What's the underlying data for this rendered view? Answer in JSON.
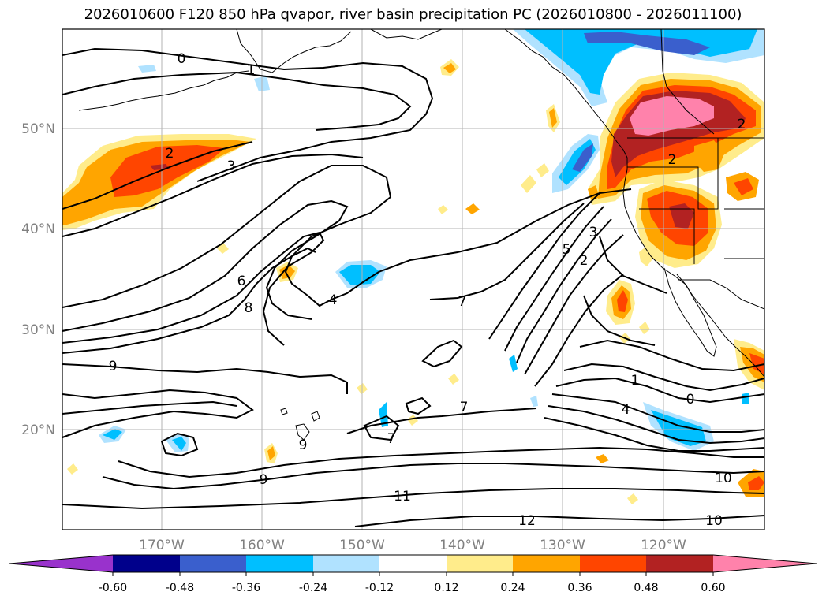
{
  "title": "2026010600 F120 850 hPa qvapor, river basin precipitation PC (2026010800 - 2026011100)",
  "lat_labels": [
    "50°N",
    "40°N",
    "30°N",
    "20°N"
  ],
  "lon_labels": [
    "170°W",
    "160°W",
    "150°W",
    "140°W",
    "130°W",
    "120°W"
  ],
  "contour_labels": [
    "0",
    "1",
    "2",
    "3",
    "4",
    "5",
    "6",
    "7",
    "8",
    "9",
    "10",
    "11",
    "12"
  ],
  "colorbar": {
    "ticks": [
      "-0.60",
      "-0.48",
      "-0.36",
      "-0.24",
      "-0.12",
      "0.12",
      "0.24",
      "0.36",
      "0.48",
      "0.60"
    ],
    "colors": [
      "#9932cc",
      "#00008b",
      "#3a5fcd",
      "#00bfff",
      "#b0e2ff",
      "#ffffff",
      "#ffec8b",
      "#ffa500",
      "#ff4500",
      "#b22222",
      "#ff82ab",
      "#ff82ab"
    ]
  }
}
